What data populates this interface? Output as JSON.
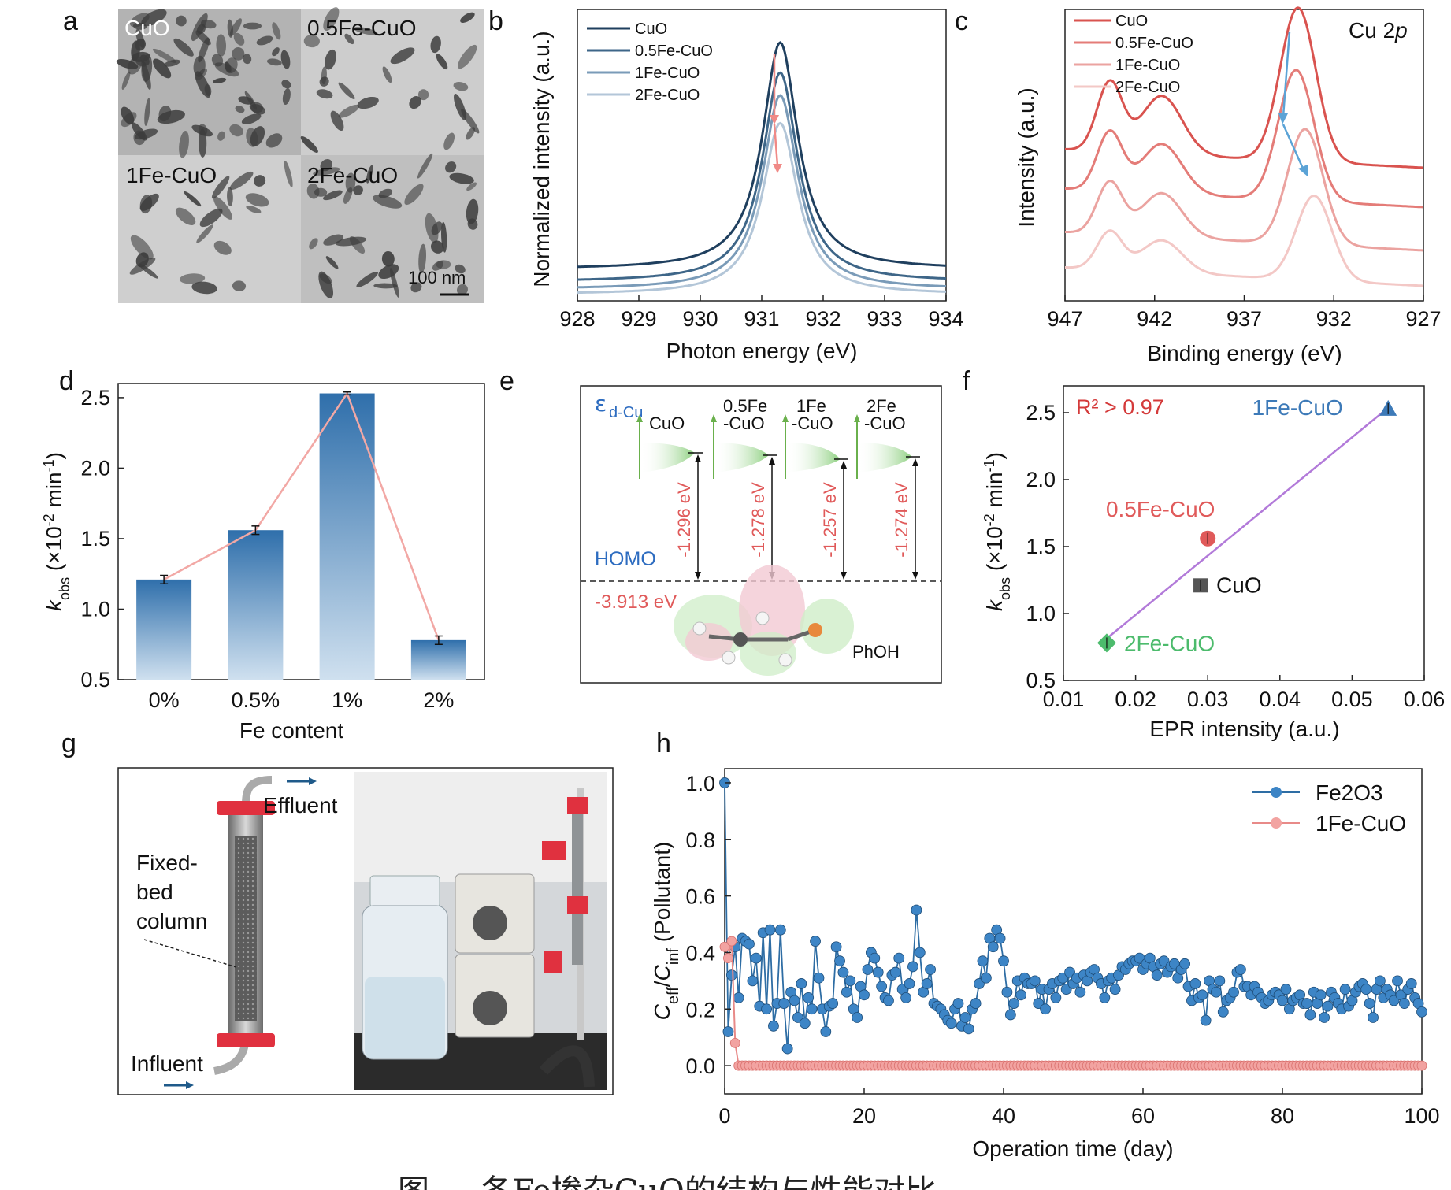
{
  "panels": {
    "a": "a",
    "b": "b",
    "c": "c",
    "d": "d",
    "e": "e",
    "f": "f",
    "g": "g",
    "h": "h"
  },
  "panel_a": {
    "labels": [
      "CuO",
      "0.5Fe-CuO",
      "1Fe-CuO",
      "2Fe-CuO"
    ],
    "scale_bar": "100 nm"
  },
  "panel_e": {
    "epsilon_label": "ε",
    "epsilon_sub": "d-Cu",
    "samples": [
      "CuO",
      "0.5Fe",
      "-CuO",
      "1Fe",
      "-CuO",
      "2Fe",
      "-CuO"
    ],
    "gaps": [
      "-1.296 eV",
      "-1.278 eV",
      "-1.257 eV",
      "-1.274 eV"
    ],
    "homo_label": "HOMO",
    "homo_energy": "-3.913 eV",
    "molecule": "PhOH"
  },
  "panel_g": {
    "effluent": "Effluent",
    "influent": "Influent",
    "column_label": [
      "Fixed-",
      "bed",
      "column"
    ]
  },
  "caption": "图 … 各Fe掺杂CuO的结构与性能对比",
  "colors": {
    "dark_blue": "#1f4e79",
    "blue": "#3d7ab8",
    "salmon": "#e88080",
    "green": "#4cbb6c",
    "purple": "#b27ad9",
    "red_text": "#d43a3a"
  },
  "chart_data": [
    {
      "id": "b",
      "type": "line",
      "xlabel": "Photon energy (eV)",
      "ylabel": "Normalized intensity (a.u.)",
      "xlim": [
        928,
        934
      ],
      "xticks": [
        "928",
        "929",
        "930",
        "931",
        "932",
        "933",
        "934"
      ],
      "series": [
        {
          "name": "CuO",
          "color": "#1f3f5e",
          "peak_x": 931.3,
          "peak_height": 1.0,
          "baseline": 0.1
        },
        {
          "name": "0.5Fe-CuO",
          "color": "#3e6688",
          "peak_x": 931.3,
          "peak_height": 0.88,
          "baseline": 0.05
        },
        {
          "name": "1Fe-CuO",
          "color": "#7a9bb8",
          "peak_x": 931.3,
          "peak_height": 0.79,
          "baseline": 0.02
        },
        {
          "name": "2Fe-CuO",
          "color": "#b3c6d8",
          "peak_x": 931.3,
          "peak_height": 0.68,
          "baseline": 0.0
        }
      ]
    },
    {
      "id": "c",
      "type": "line",
      "title": "Cu 2p",
      "xlabel": "Binding energy (eV)",
      "ylabel": "Intensity (a.u.)",
      "xlim": [
        947,
        927
      ],
      "xticks": [
        "947",
        "942",
        "937",
        "932",
        "927"
      ],
      "series": [
        {
          "name": "CuO",
          "color": "#d9534f"
        },
        {
          "name": "0.5Fe-CuO",
          "color": "#e47c78"
        },
        {
          "name": "1Fe-CuO",
          "color": "#eba3a0"
        },
        {
          "name": "2Fe-CuO",
          "color": "#f3c8c6"
        }
      ]
    },
    {
      "id": "d",
      "type": "bar",
      "xlabel": "Fe content",
      "ylabel": "kobs (×10-2 min-1)",
      "ylim": [
        0.5,
        2.6
      ],
      "yticks": [
        "0.5",
        "1.0",
        "1.5",
        "2.0",
        "2.5"
      ],
      "categories": [
        "0%",
        "0.5%",
        "1%",
        "2%"
      ],
      "values": [
        1.21,
        1.56,
        2.53,
        0.78
      ],
      "errors": [
        0.03,
        0.03,
        0.01,
        0.03
      ]
    },
    {
      "id": "f",
      "type": "scatter",
      "xlabel": "EPR intensity (a.u.)",
      "ylabel": "kobs (×10-2 min-1)",
      "xlim": [
        0.01,
        0.06
      ],
      "ylim": [
        0.5,
        2.7
      ],
      "xticks": [
        "0.01",
        "0.02",
        "0.03",
        "0.04",
        "0.05",
        "0.06"
      ],
      "yticks": [
        "0.5",
        "1.0",
        "1.5",
        "2.0",
        "2.5"
      ],
      "r2": "R² > 0.97",
      "points": [
        {
          "name": "1Fe-CuO",
          "x": 0.055,
          "y": 2.53,
          "color": "#3d7ab8",
          "marker": "triangle"
        },
        {
          "name": "0.5Fe-CuO",
          "x": 0.03,
          "y": 1.56,
          "color": "#e05a5a",
          "marker": "circle"
        },
        {
          "name": "CuO",
          "x": 0.029,
          "y": 1.21,
          "color": "#555555",
          "marker": "square"
        },
        {
          "name": "2Fe-CuO",
          "x": 0.016,
          "y": 0.78,
          "color": "#4cbb6c",
          "marker": "diamond"
        }
      ]
    },
    {
      "id": "h",
      "type": "line",
      "xlabel": "Operation time (day)",
      "ylabel": "Ceff/Cinf (Pollutant)",
      "xlim": [
        0,
        100
      ],
      "ylim": [
        -0.1,
        1.05
      ],
      "xticks": [
        "0",
        "20",
        "40",
        "60",
        "80",
        "100"
      ],
      "yticks": [
        "0.0",
        "0.2",
        "0.4",
        "0.6",
        "0.8",
        "1.0"
      ],
      "series": [
        {
          "name": "Fe2O3",
          "color": "#2e6da4",
          "x": [
            0,
            0.5,
            1,
            1.5,
            2,
            2.5,
            3,
            3.5,
            4,
            4.5,
            5,
            5.5,
            6,
            6.5,
            7,
            7.5,
            8,
            8.5,
            9,
            9.5,
            10,
            10.5,
            11,
            11.5,
            12,
            12.5,
            13,
            13.5,
            14,
            14.5,
            15,
            15.5,
            16,
            16.5,
            17,
            17.5,
            18,
            18.5,
            19,
            19.5,
            20,
            20.5,
            21,
            21.5,
            22,
            22.5,
            23,
            23.5,
            24,
            24.5,
            25,
            25.5,
            26,
            26.5,
            27,
            27.5,
            28,
            28.5,
            29,
            29.5,
            30,
            30.5,
            31,
            31.5,
            32,
            32.5,
            33,
            33.5,
            34,
            34.5,
            35,
            35.5,
            36,
            36.5,
            37,
            37.5,
            38,
            38.5,
            39,
            39.5,
            40,
            40.5,
            41,
            41.5,
            42,
            42.5,
            43,
            43.5,
            44,
            44.5,
            45,
            45.5,
            46,
            46.5,
            47,
            47.5,
            48,
            48.5,
            49,
            49.5,
            50,
            50.5,
            51,
            51.5,
            52,
            52.5,
            53,
            53.5,
            54,
            54.5,
            55,
            55.5,
            56,
            56.5,
            57,
            57.5,
            58,
            58.5,
            59,
            59.5,
            60,
            60.5,
            61,
            61.5,
            62,
            62.5,
            63,
            63.5,
            64,
            64.5,
            65,
            65.5,
            66,
            66.5,
            67,
            67.5,
            68,
            68.5,
            69,
            69.5,
            70,
            70.5,
            71,
            71.5,
            72,
            72.5,
            73,
            73.5,
            74,
            74.5,
            75,
            75.5,
            76,
            76.5,
            77,
            77.5,
            78,
            78.5,
            79,
            79.5,
            80,
            80.5,
            81,
            81.5,
            82,
            82.5,
            83,
            83.5,
            84,
            84.5,
            85,
            85.5,
            86,
            86.5,
            87,
            87.5,
            88,
            88.5,
            89,
            89.5,
            90,
            90.5,
            91,
            91.5,
            92,
            92.5,
            93,
            93.5,
            94,
            94.5,
            95,
            95.5,
            96,
            96.5,
            97,
            97.5,
            98,
            98.5,
            99,
            99.5,
            100
          ],
          "y": [
            1.0,
            0.12,
            0.32,
            0.42,
            0.24,
            0.45,
            0.44,
            0.43,
            0.3,
            0.38,
            0.21,
            0.47,
            0.2,
            0.48,
            0.14,
            0.22,
            0.48,
            0.22,
            0.06,
            0.26,
            0.23,
            0.17,
            0.29,
            0.15,
            0.24,
            0.2,
            0.44,
            0.31,
            0.2,
            0.12,
            0.21,
            0.22,
            0.42,
            0.37,
            0.33,
            0.26,
            0.3,
            0.2,
            0.17,
            0.28,
            0.25,
            0.34,
            0.4,
            0.38,
            0.33,
            0.28,
            0.24,
            0.23,
            0.32,
            0.33,
            0.38,
            0.27,
            0.24,
            0.29,
            0.35,
            0.55,
            0.4,
            0.26,
            0.29,
            0.34,
            0.22,
            0.21,
            0.2,
            0.18,
            0.16,
            0.15,
            0.2,
            0.22,
            0.14,
            0.17,
            0.13,
            0.2,
            0.22,
            0.29,
            0.37,
            0.31,
            0.45,
            0.42,
            0.48,
            0.45,
            0.37,
            0.26,
            0.18,
            0.22,
            0.3,
            0.25,
            0.31,
            0.29,
            0.29,
            0.3,
            0.22,
            0.27,
            0.2,
            0.27,
            0.29,
            0.24,
            0.3,
            0.31,
            0.27,
            0.33,
            0.29,
            0.31,
            0.26,
            0.32,
            0.3,
            0.33,
            0.34,
            0.31,
            0.29,
            0.24,
            0.3,
            0.31,
            0.27,
            0.32,
            0.35,
            0.34,
            0.36,
            0.37,
            0.37,
            0.38,
            0.34,
            0.36,
            0.38,
            0.35,
            0.32,
            0.36,
            0.37,
            0.33,
            0.35,
            0.36,
            0.31,
            0.34,
            0.36,
            0.28,
            0.23,
            0.29,
            0.24,
            0.25,
            0.16,
            0.3,
            0.27,
            0.26,
            0.3,
            0.19,
            0.23,
            0.24,
            0.26,
            0.33,
            0.34,
            0.28,
            0.28,
            0.25,
            0.28,
            0.26,
            0.24,
            0.22,
            0.23,
            0.25,
            0.26,
            0.25,
            0.23,
            0.27,
            0.2,
            0.23,
            0.24,
            0.25,
            0.22,
            0.22,
            0.18,
            0.26,
            0.22,
            0.25,
            0.17,
            0.21,
            0.26,
            0.24,
            0.22,
            0.2,
            0.27,
            0.21,
            0.23,
            0.26,
            0.28,
            0.29,
            0.27,
            0.22,
            0.17,
            0.27,
            0.3,
            0.24,
            0.27,
            0.25,
            0.23,
            0.3,
            0.25,
            0.22,
            0.27,
            0.29,
            0.24,
            0.22,
            0.19
          ]
        },
        {
          "name": "1Fe-CuO",
          "color": "#e88a88",
          "x": [
            0,
            0.5,
            1,
            1.5,
            2
          ],
          "y": [
            0.42,
            0.38,
            0.44,
            0.08,
            0.0
          ],
          "flat_from": 2,
          "flat_value": 0.0
        }
      ]
    }
  ]
}
